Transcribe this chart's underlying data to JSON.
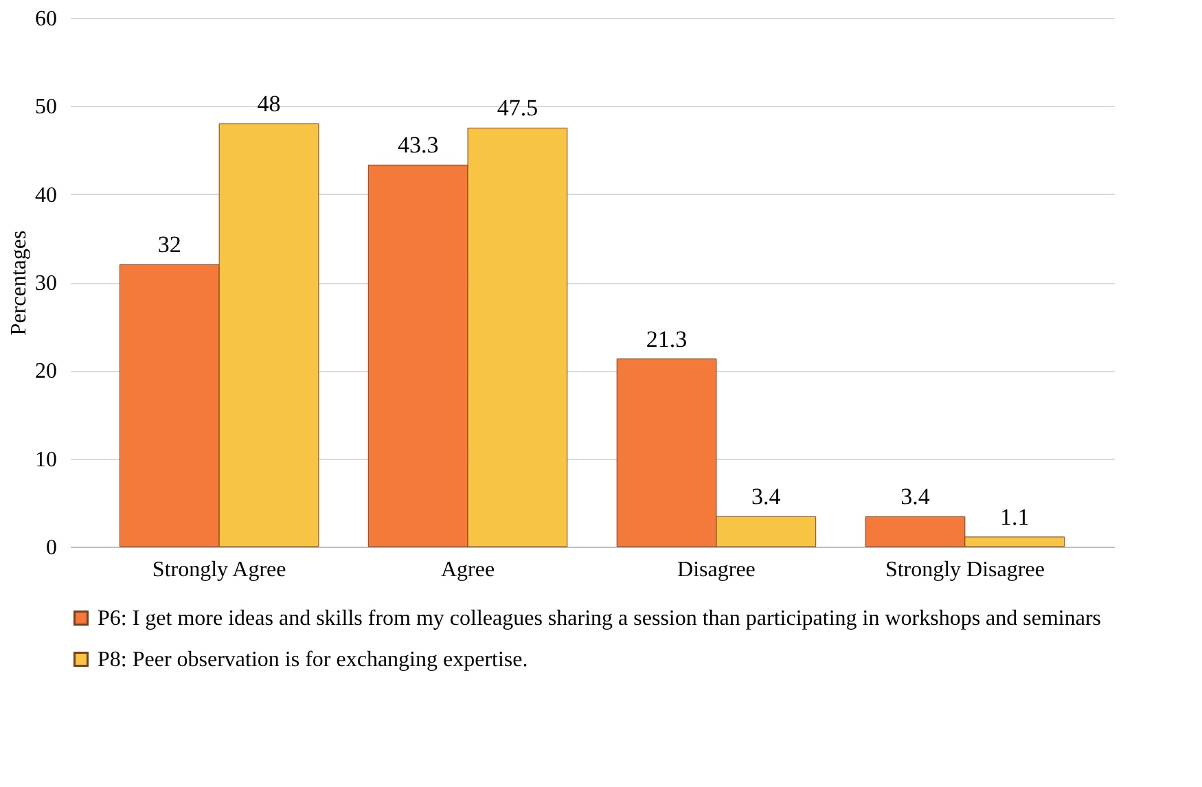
{
  "chart_data": {
    "type": "bar",
    "ylabel": "Percentages",
    "categories": [
      "Strongly Agree",
      "Agree",
      "Disagree",
      "Strongly Disagree"
    ],
    "series": [
      {
        "name": "P6: I get more ideas and skills from my colleagues sharing a session than participating in workshops and seminars",
        "color": "#f47a3c",
        "values": [
          32,
          43.3,
          21.3,
          3.4
        ]
      },
      {
        "name": "P8: Peer observation is for exchanging expertise.",
        "color": "#f7c443",
        "values": [
          48,
          47.5,
          3.4,
          1.1
        ]
      }
    ],
    "ylim": [
      0,
      60
    ],
    "yticks": [
      0,
      10,
      20,
      30,
      40,
      50,
      60
    ],
    "grid": "y",
    "legend": "bottom",
    "data_labels": true
  }
}
